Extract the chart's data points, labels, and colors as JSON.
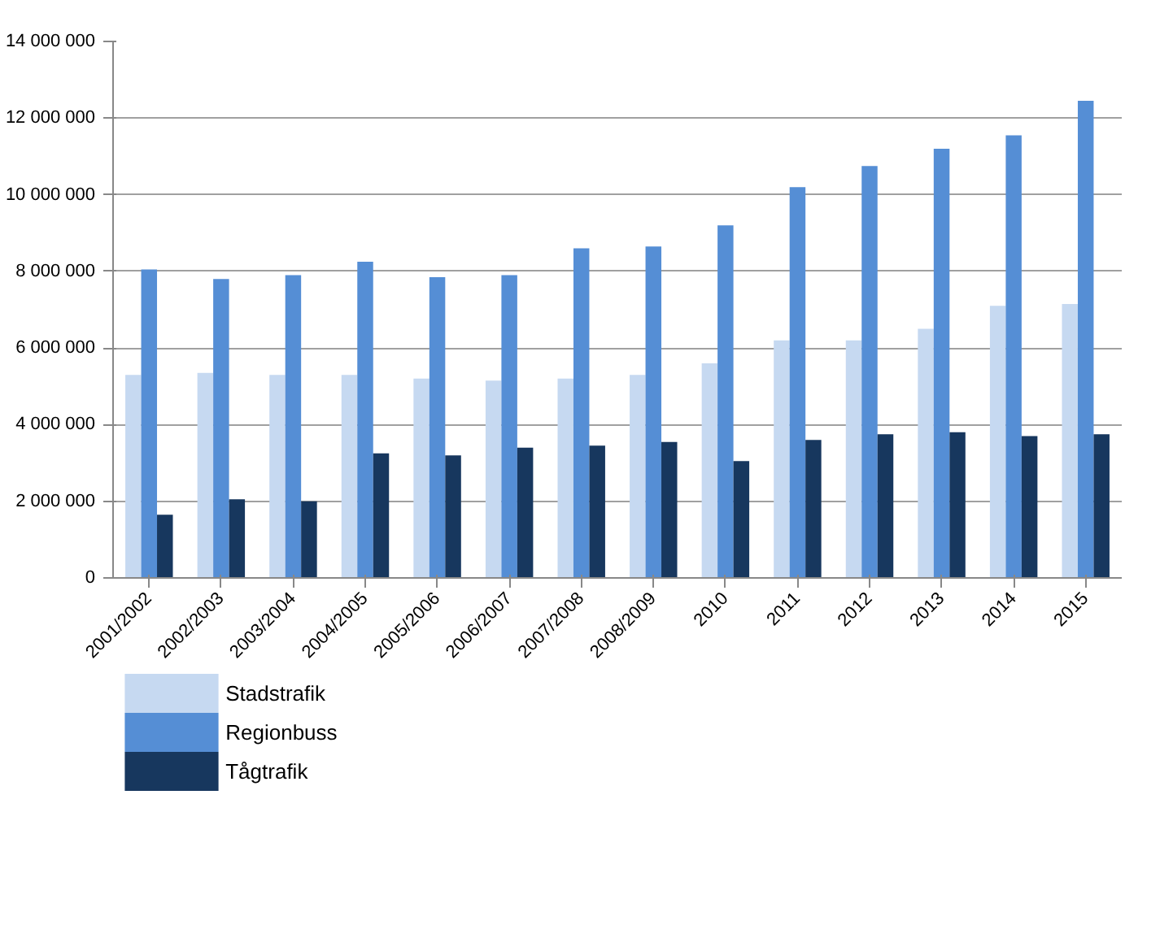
{
  "chart_data": {
    "type": "bar",
    "categories": [
      "2001/2002",
      "2002/2003",
      "2003/2004",
      "2004/2005",
      "2005/2006",
      "2006/2007",
      "2007/2008",
      "2008/2009",
      "2010",
      "2011",
      "2012",
      "2013",
      "2014",
      "2015"
    ],
    "series": [
      {
        "name": "Stadstrafik",
        "color": "#c6d9f1",
        "values": [
          5300000,
          5350000,
          5300000,
          5300000,
          5200000,
          5150000,
          5200000,
          5300000,
          5600000,
          6200000,
          6200000,
          6500000,
          7100000,
          7150000
        ]
      },
      {
        "name": "Regionbuss",
        "color": "#558ed5",
        "values": [
          8050000,
          7800000,
          7900000,
          8250000,
          7850000,
          7900000,
          8600000,
          8650000,
          9200000,
          10200000,
          10750000,
          11200000,
          11550000,
          12450000
        ]
      },
      {
        "name": "Tågtrafik",
        "color": "#17375e",
        "values": [
          1650000,
          2050000,
          2000000,
          3250000,
          3200000,
          3400000,
          3450000,
          3550000,
          3050000,
          3600000,
          3750000,
          3800000,
          3700000,
          3750000
        ]
      }
    ],
    "ylim": [
      0,
      14000000
    ],
    "yticks": [
      {
        "value": 0,
        "label": "0"
      },
      {
        "value": 2000000,
        "label": "2 000 000"
      },
      {
        "value": 4000000,
        "label": "4 000 000"
      },
      {
        "value": 6000000,
        "label": "6 000 000"
      },
      {
        "value": 8000000,
        "label": "8 000 000"
      },
      {
        "value": 10000000,
        "label": "10 000 000"
      },
      {
        "value": 12000000,
        "label": "12 000 000"
      },
      {
        "value": 14000000,
        "label": "14 000 000"
      }
    ],
    "grid": "y",
    "legend": "bottom left"
  }
}
